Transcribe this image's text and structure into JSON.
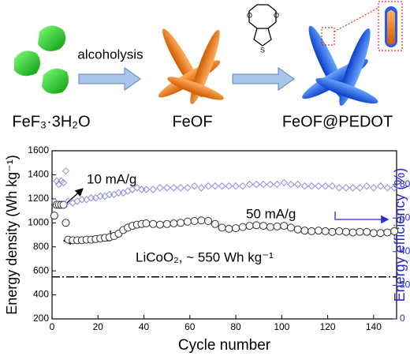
{
  "scheme": {
    "step_label": "alcoholysis",
    "labels": [
      "FeF₃·3H₂O",
      "FeOF",
      "FeOF@PEDOT"
    ]
  },
  "chart_data": {
    "type": "scatter",
    "x_label": "Cycle number",
    "y_label": "Energy density (Wh kg⁻¹)",
    "y2_label": "Energy efficiency (%)",
    "annotations": [
      "10 mA/g",
      "50 mA/g",
      "LiCoO₂, ~ 550 Wh kg⁻¹"
    ],
    "reference_line": 550,
    "xlim": [
      0,
      150
    ],
    "xticks": [
      0,
      20,
      40,
      60,
      80,
      100,
      120,
      140
    ],
    "ylim": [
      200,
      1600
    ],
    "yticks": [
      200,
      400,
      600,
      800,
      1000,
      1200,
      1400,
      1600
    ],
    "y2lim": [
      0,
      100
    ],
    "y2ticks": [
      0,
      20,
      40,
      60,
      80
    ],
    "x": [
      1,
      2,
      3,
      4,
      5,
      6,
      7,
      9,
      11,
      13,
      15,
      17,
      19,
      21,
      23,
      25,
      27,
      29,
      31,
      33,
      35,
      37,
      39,
      41,
      44,
      47,
      50,
      53,
      56,
      59,
      62,
      65,
      68,
      71,
      74,
      77,
      80,
      83,
      86,
      89,
      92,
      95,
      98,
      101,
      104,
      107,
      110,
      113,
      116,
      119,
      122,
      125,
      128,
      131,
      134,
      137,
      140,
      143,
      146,
      149
    ],
    "series": [
      {
        "marker": "circle",
        "color": "#333333",
        "axis": "y",
        "values": [
          1060,
          1150,
          1150,
          1150,
          1150,
          1000,
          860,
          855,
          855,
          855,
          860,
          860,
          865,
          870,
          875,
          880,
          890,
          910,
          940,
          960,
          975,
          985,
          990,
          995,
          990,
          985,
          990,
          995,
          1000,
          1010,
          1015,
          1020,
          1015,
          990,
          960,
          950,
          955,
          965,
          975,
          980,
          975,
          965,
          970,
          975,
          960,
          945,
          935,
          930,
          935,
          930,
          925,
          930,
          925,
          920,
          925,
          925,
          915,
          915,
          920,
          930
        ]
      },
      {
        "marker": "diamond",
        "color": "#8c8ce6",
        "axis": "y2",
        "values": [
          70,
          82,
          80,
          82,
          81,
          88,
          70,
          69,
          70,
          71,
          71,
          72,
          72,
          73,
          73,
          74,
          74,
          75,
          75,
          76,
          77,
          78,
          77,
          77,
          77,
          78,
          78,
          78,
          78,
          78,
          79,
          78,
          79,
          79,
          79,
          79,
          79,
          79,
          80,
          80,
          80,
          80,
          80,
          81,
          80,
          80,
          79,
          79,
          79,
          79,
          79,
          78,
          78,
          78,
          78,
          79,
          78,
          79,
          78,
          78
        ]
      }
    ]
  }
}
